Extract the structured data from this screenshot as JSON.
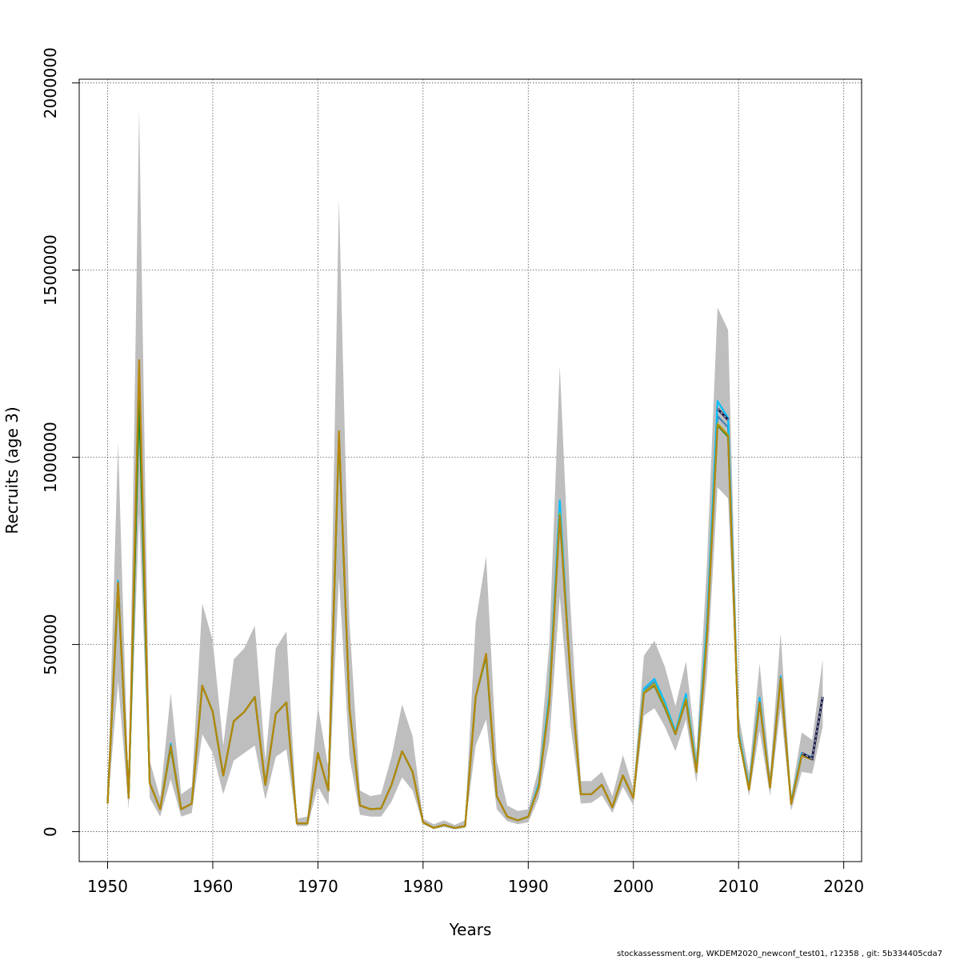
{
  "chart_data": {
    "type": "line",
    "xlabel": "Years",
    "ylabel": "Recruits (age 3)",
    "xlim": [
      1947.3,
      2021.7
    ],
    "ylim": [
      -80000,
      2010000
    ],
    "x_ticks": [
      1950,
      1960,
      1970,
      1980,
      1990,
      2000,
      2010,
      2020
    ],
    "y_ticks": [
      0,
      500000,
      1000000,
      1500000,
      2000000
    ],
    "x_tick_labels": [
      "1950",
      "1960",
      "1970",
      "1980",
      "1990",
      "2000",
      "2010",
      "2020"
    ],
    "y_tick_labels": [
      "0",
      "500000",
      "1000000",
      "1500000",
      "2000000"
    ],
    "grid": true,
    "band_color": "#bebebe",
    "band": {
      "x": [
        1950,
        1951,
        1952,
        1953,
        1954,
        1955,
        1956,
        1957,
        1958,
        1959,
        1960,
        1961,
        1962,
        1963,
        1964,
        1965,
        1966,
        1967,
        1968,
        1969,
        1970,
        1971,
        1972,
        1973,
        1974,
        1975,
        1976,
        1977,
        1978,
        1979,
        1980,
        1981,
        1982,
        1983,
        1984,
        1985,
        1986,
        1987,
        1988,
        1989,
        1990,
        1991,
        1992,
        1993,
        1994,
        1995,
        1996,
        1997,
        1998,
        1999,
        2000,
        2001,
        2002,
        2003,
        2004,
        2005,
        2006,
        2007,
        2008,
        2009,
        2010,
        2011,
        2012,
        2013,
        2014,
        2015,
        2016,
        2017,
        2018
      ],
      "lower": [
        65000,
        400000,
        60000,
        850000,
        90000,
        40000,
        140000,
        40000,
        50000,
        260000,
        210000,
        100000,
        190000,
        210000,
        230000,
        85000,
        200000,
        220000,
        15000,
        15000,
        120000,
        70000,
        680000,
        200000,
        45000,
        40000,
        40000,
        80000,
        145000,
        110000,
        20000,
        7000,
        12000,
        6000,
        10000,
        230000,
        300000,
        60000,
        28000,
        20000,
        25000,
        90000,
        240000,
        630000,
        290000,
        75000,
        77000,
        97000,
        50000,
        120000,
        70000,
        310000,
        330000,
        280000,
        215000,
        300000,
        130000,
        420000,
        920000,
        890000,
        250000,
        95000,
        270000,
        95000,
        330000,
        55000,
        160000,
        155000,
        280000
      ],
      "upper": [
        90000,
        1040000,
        100000,
        1930000,
        190000,
        90000,
        370000,
        100000,
        120000,
        610000,
        510000,
        230000,
        460000,
        490000,
        550000,
        190000,
        490000,
        535000,
        35000,
        40000,
        335000,
        170000,
        1690000,
        560000,
        110000,
        95000,
        100000,
        200000,
        340000,
        255000,
        35000,
        20000,
        30000,
        18000,
        30000,
        560000,
        735000,
        190000,
        70000,
        55000,
        60000,
        170000,
        500000,
        1245000,
        610000,
        135000,
        135000,
        160000,
        95000,
        205000,
        115000,
        470000,
        510000,
        440000,
        335000,
        455000,
        210000,
        720000,
        1400000,
        1340000,
        315000,
        155000,
        450000,
        155000,
        530000,
        95000,
        265000,
        245000,
        460000
      ]
    },
    "series": [
      {
        "color": "#4682b4",
        "values": [
          75000,
          665000,
          90000,
          1160000,
          130000,
          60000,
          230000,
          60000,
          75000,
          390000,
          320000,
          150000,
          295000,
          320000,
          360000,
          125000,
          315000,
          345000,
          22000,
          22000,
          210000,
          110000,
          1055000,
          330000,
          70000,
          60000,
          62000,
          125000,
          215000,
          160000,
          25000,
          10000,
          18000,
          10000,
          15000,
          360000,
          470000,
          95000,
          40000,
          30000,
          40000,
          125000,
          355000,
          855000,
          420000,
          100000,
          100000,
          125000,
          65000,
          150000,
          90000,
          375000,
          400000,
          340000,
          265000,
          360000,
          165000,
          545000,
          1110000,
          1080000,
          260000,
          115000,
          350000,
          120000,
          415000,
          75000,
          205000,
          195000,
          360000
        ]
      },
      {
        "color": "#00bfff",
        "values": [
          75000,
          670000,
          90000,
          1170000,
          130000,
          60000,
          235000,
          60000,
          75000,
          390000,
          320000,
          150000,
          295000,
          320000,
          360000,
          125000,
          315000,
          345000,
          22000,
          22000,
          210000,
          110000,
          1060000,
          330000,
          70000,
          60000,
          62000,
          125000,
          215000,
          160000,
          25000,
          10000,
          18000,
          10000,
          15000,
          360000,
          470000,
          95000,
          40000,
          30000,
          40000,
          128000,
          365000,
          885000,
          420000,
          100000,
          100000,
          125000,
          65000,
          150000,
          90000,
          382000,
          408000,
          345000,
          268000,
          368000,
          168000,
          560000,
          1150000,
          1105000,
          265000,
          118000,
          358000,
          120000,
          415000,
          78000,
          210000,
          198000,
          360000
        ]
      },
      {
        "color": "#9acd32",
        "values": [
          75000,
          660000,
          90000,
          1170000,
          130000,
          60000,
          225000,
          60000,
          75000,
          390000,
          320000,
          150000,
          295000,
          320000,
          360000,
          125000,
          315000,
          345000,
          22000,
          22000,
          210000,
          110000,
          1055000,
          330000,
          70000,
          60000,
          62000,
          125000,
          215000,
          160000,
          25000,
          10000,
          18000,
          10000,
          15000,
          360000,
          470000,
          95000,
          40000,
          30000,
          40000,
          120000,
          350000,
          850000,
          420000,
          100000,
          100000,
          125000,
          65000,
          150000,
          90000,
          372000,
          395000,
          335000,
          262000,
          355000,
          160000,
          530000,
          1090000,
          1060000,
          255000,
          112000,
          345000,
          118000,
          410000,
          74000,
          203000,
          193000,
          358000
        ]
      },
      {
        "color": "#228b22",
        "values": [
          75000,
          655000,
          90000,
          1150000,
          130000,
          60000,
          225000,
          60000,
          75000,
          390000,
          320000,
          150000,
          295000,
          320000,
          360000,
          125000,
          315000,
          345000,
          22000,
          22000,
          210000,
          110000,
          1060000,
          330000,
          70000,
          60000,
          62000,
          125000,
          215000,
          160000,
          25000,
          10000,
          18000,
          10000,
          15000,
          360000,
          470000,
          95000,
          40000,
          30000,
          40000,
          120000,
          345000,
          840000,
          420000,
          100000,
          100000,
          125000,
          65000,
          150000,
          90000,
          370000,
          390000,
          330000,
          260000,
          350000,
          160000,
          525000,
          1085000,
          1055000,
          255000,
          112000,
          345000,
          118000,
          410000,
          74000,
          203000,
          193000,
          358000
        ]
      },
      {
        "color": "#b8860b",
        "values": [
          75000,
          665000,
          90000,
          1260000,
          130000,
          60000,
          230000,
          60000,
          75000,
          390000,
          320000,
          150000,
          295000,
          320000,
          360000,
          125000,
          315000,
          345000,
          22000,
          22000,
          210000,
          110000,
          1070000,
          330000,
          70000,
          60000,
          62000,
          125000,
          215000,
          160000,
          25000,
          10000,
          18000,
          10000,
          15000,
          360000,
          475000,
          95000,
          40000,
          30000,
          40000,
          120000,
          345000,
          845000,
          420000,
          100000,
          100000,
          125000,
          65000,
          150000,
          90000,
          370000,
          392000,
          333000,
          261000,
          352000,
          160000,
          525000,
          1088000,
          1058000,
          256000,
          112000,
          346000,
          118000,
          410000,
          74000,
          203000,
          193000,
          358000
        ]
      }
    ],
    "dashed_series": {
      "color": "#1a1a4d",
      "x": [
        2008,
        2009,
        2016,
        2017,
        2018
      ],
      "segments": [
        {
          "x": [
            2008,
            2009
          ],
          "values": [
            1130000,
            1100000
          ]
        },
        {
          "x": [
            2016,
            2017,
            2018
          ],
          "values": [
            210000,
            195000,
            360000
          ]
        }
      ]
    }
  },
  "footer": "stockassessment.org, WKDEM2020_newconf_test01, r12358 , git: 5b334405cda7"
}
